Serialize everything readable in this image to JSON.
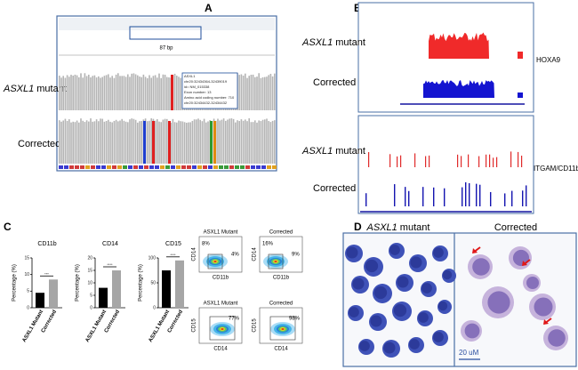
{
  "panel_A": {
    "label": "A",
    "scale": "87 bp",
    "mutant": {
      "gene": "ASXL1",
      "rest": "mutant"
    },
    "corrected": "Corrected",
    "popup": [
      "ASXL1",
      "chr20:32434364-32439019",
      "id= NM_015338",
      "Exon number: 13",
      "Amino acid coding number: 710",
      "chr20:32434432-32434432"
    ]
  },
  "panel_B": {
    "label": "B",
    "top": {
      "gene_label": "HOXA9",
      "mutant": {
        "gene": "ASXL1",
        "rest": "mutant"
      },
      "corrected": "Corrected"
    },
    "bottom": {
      "gene_label": "ITGAM/CD11b",
      "mutant": {
        "gene": "ASXL1",
        "rest": "mutant"
      },
      "corrected": "Corrected"
    }
  },
  "panel_C": {
    "label": "C",
    "flow": [
      {
        "title": "ASXL1 Mutant",
        "xlabel": "CD11b",
        "ylabel": "CD14",
        "gates": [
          "8%",
          "4%"
        ]
      },
      {
        "title": "Corrected",
        "xlabel": "CD11b",
        "ylabel": "CD14",
        "gates": [
          "16%",
          "9%"
        ]
      },
      {
        "title": "ASXL1 Mutant",
        "xlabel": "CD14",
        "ylabel": "CD15",
        "gates": [
          "77%"
        ]
      },
      {
        "title": "Corrected",
        "xlabel": "CD14",
        "ylabel": "CD15",
        "gates": [
          "98%"
        ]
      }
    ]
  },
  "chart_data": [
    {
      "type": "bar",
      "title": "CD11b",
      "ylabel": "Percentage (%)",
      "categories": [
        "ASXL1 Mutant",
        "Corrected"
      ],
      "values": [
        4.5,
        8.5
      ],
      "colors": [
        "#000000",
        "#a6a6a6"
      ],
      "ylim": [
        0,
        15
      ],
      "yticks": [
        0,
        5,
        10,
        15
      ],
      "significance": "***"
    },
    {
      "type": "bar",
      "title": "CD14",
      "ylabel": "Percentage (%)",
      "categories": [
        "ASXL1 Mutant",
        "Corrected"
      ],
      "values": [
        8,
        15
      ],
      "colors": [
        "#000000",
        "#a6a6a6"
      ],
      "ylim": [
        0,
        20
      ],
      "yticks": [
        0,
        5,
        10,
        15,
        20
      ],
      "significance": "****"
    },
    {
      "type": "bar",
      "title": "CD15",
      "ylabel": "Percentage (%)",
      "categories": [
        "ASXL1 Mutant",
        "Corrected"
      ],
      "values": [
        75,
        95
      ],
      "colors": [
        "#000000",
        "#a6a6a6"
      ],
      "ylim": [
        0,
        100
      ],
      "yticks": [
        0,
        50,
        100
      ],
      "significance": "****"
    }
  ],
  "panel_D": {
    "label": "D",
    "mutant": {
      "gene": "ASXL1",
      "rest": "mutant"
    },
    "corrected": "Corrected",
    "scale_bar": "20 uM"
  }
}
